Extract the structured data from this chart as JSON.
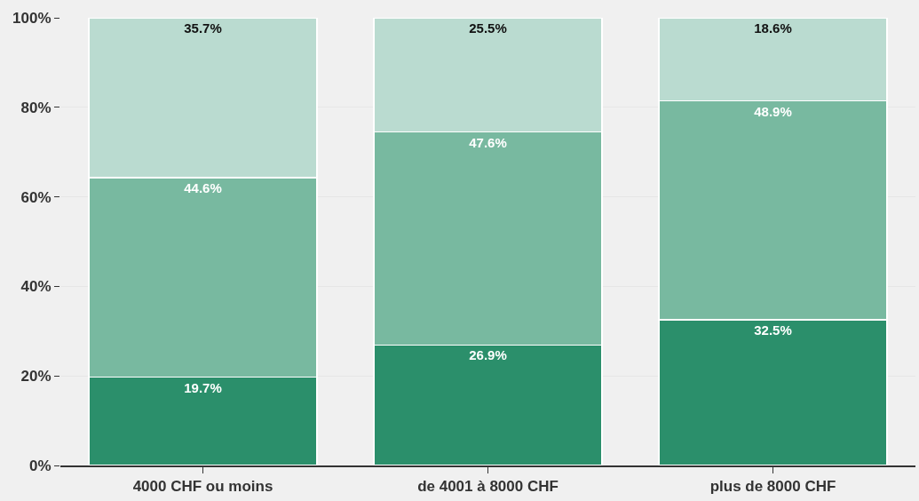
{
  "chart_data": {
    "type": "bar",
    "stacked": true,
    "categories": [
      "4000 CHF ou moins",
      "de 4001 à 8000 CHF",
      "plus de 8000 CHF"
    ],
    "series": [
      {
        "color": "#2b8f6b",
        "values": [
          19.7,
          26.9,
          32.5
        ],
        "value_labels": [
          "19.7%",
          "26.9%",
          "32.5%"
        ]
      },
      {
        "color": "#78b9a0",
        "values": [
          44.6,
          47.6,
          48.9
        ],
        "value_labels": [
          "44.6%",
          "47.6%",
          "48.9%"
        ]
      },
      {
        "color": "#badbd0",
        "values": [
          35.7,
          25.5,
          18.6
        ],
        "value_labels": [
          "35.7%",
          "25.5%",
          "18.6%"
        ]
      }
    ],
    "ylim": [
      0,
      100
    ],
    "yticks": [
      {
        "value": 0,
        "label": "0%"
      },
      {
        "value": 20,
        "label": "20%"
      },
      {
        "value": 40,
        "label": "40%"
      },
      {
        "value": 60,
        "label": "60%"
      },
      {
        "value": 80,
        "label": "80%"
      },
      {
        "value": 100,
        "label": "100%"
      }
    ],
    "grid": "y"
  }
}
